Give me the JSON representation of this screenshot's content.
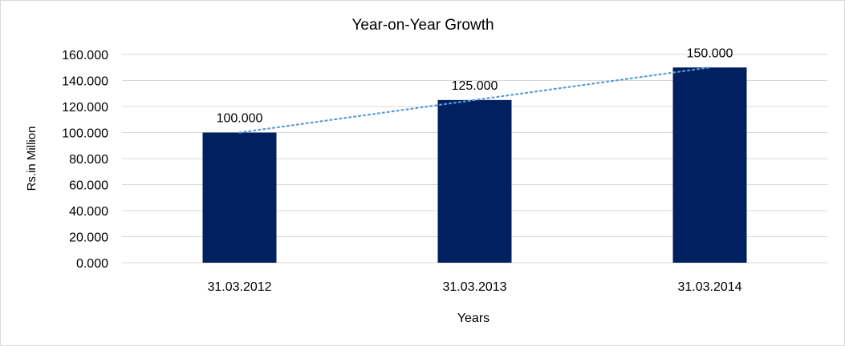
{
  "chart_data": {
    "type": "bar",
    "title": "Year-on-Year Growth",
    "xlabel": "Years",
    "ylabel": "Rs.in Million",
    "categories": [
      "31.03.2012",
      "31.03.2013",
      "31.03.2014"
    ],
    "values": [
      100,
      125,
      150
    ],
    "data_labels": [
      "100.000",
      "125.000",
      "150.000"
    ],
    "ylim": [
      0,
      160
    ],
    "yticks": [
      0,
      20,
      40,
      60,
      80,
      100,
      120,
      140,
      160
    ],
    "ytick_labels": [
      "0.000",
      "20.000",
      "40.000",
      "60.000",
      "80.000",
      "100.000",
      "120.000",
      "140.000",
      "160.000"
    ],
    "grid": true,
    "legend": "none",
    "trendline": {
      "type": "linear",
      "style": "dotted",
      "color": "#5B9BD5"
    },
    "colors": {
      "bar": "#002060",
      "grid": "#d9d9d9"
    }
  }
}
